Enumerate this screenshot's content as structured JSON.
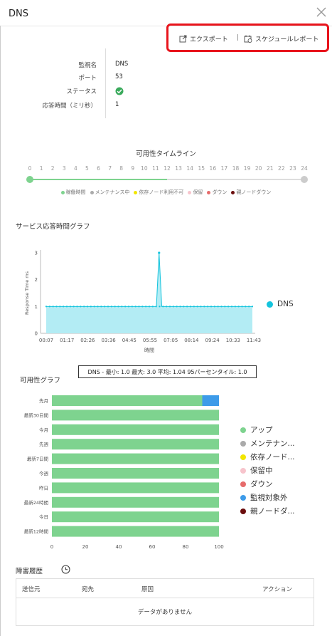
{
  "panel": {
    "title": "DNS"
  },
  "toolbar": {
    "export_label": "エクスポート",
    "separator": "|",
    "schedule_label": "スケジュールレポート"
  },
  "summary": {
    "rows": [
      {
        "label": "監視名",
        "value": "DNS"
      },
      {
        "label": "ポート",
        "value": "53"
      },
      {
        "label": "ステータス",
        "value": ""
      },
      {
        "label": "応答時間（ミリ秒）",
        "value": "1"
      }
    ],
    "status_color": "#3aaa5c"
  },
  "timeline": {
    "title": "可用性タイムライン",
    "hours": [
      "0",
      "1",
      "2",
      "3",
      "4",
      "5",
      "6",
      "7",
      "8",
      "9",
      "10",
      "11",
      "12",
      "13",
      "14",
      "15",
      "16",
      "17",
      "18",
      "19",
      "20",
      "21",
      "22",
      "23",
      "24"
    ],
    "progress_fraction": 0.5,
    "legend": [
      {
        "label": "稼働時間",
        "color": "#7ed38f"
      },
      {
        "label": "メンテナンス中",
        "color": "#aaaaaa"
      },
      {
        "label": "依存ノード利用不可",
        "color": "#f2e600"
      },
      {
        "label": "保留",
        "color": "#f7c4cc"
      },
      {
        "label": "ダウン",
        "color": "#e66b6b"
      },
      {
        "label": "親ノードダウン",
        "color": "#6b0d0d"
      }
    ]
  },
  "response_chart": {
    "title": "サービス応答時間グラフ",
    "legend_label": "DNS",
    "color": "#15c4dd"
  },
  "tooltip_text": "DNS - 最小: 1.0 最大: 3.0 平均: 1.04 95パーセンタイル: 1.0",
  "availability_chart": {
    "title": "可用性グラフ",
    "legend": [
      {
        "label": "アップ",
        "color": "#7ed38f"
      },
      {
        "label": "メンテナン...",
        "color": "#aaaaaa"
      },
      {
        "label": "依存ノード...",
        "color": "#f2e600"
      },
      {
        "label": "保留中",
        "color": "#f7c4cc"
      },
      {
        "label": "ダウン",
        "color": "#e66b6b"
      },
      {
        "label": "監視対象外",
        "color": "#3d9be9"
      },
      {
        "label": "親ノードダ...",
        "color": "#6b0d0d"
      }
    ]
  },
  "chart_data": [
    {
      "type": "area",
      "title": "",
      "xlabel": "時間",
      "ylabel": "Response Time ms",
      "x": [
        "00:07",
        "01:17",
        "02:26",
        "03:36",
        "04:45",
        "05:55",
        "07:05",
        "08:14",
        "09:24",
        "10:33",
        "11:43"
      ],
      "series": [
        {
          "name": "DNS",
          "points": [
            [
              0,
              1
            ],
            [
              0.7,
              1
            ],
            [
              1.4,
              1
            ],
            [
              2.1,
              1
            ],
            [
              2.8,
              1
            ],
            [
              3.5,
              1
            ],
            [
              4.2,
              1
            ],
            [
              4.9,
              1
            ],
            [
              5.6,
              1
            ],
            [
              6.2,
              1
            ],
            [
              6.35,
              3
            ],
            [
              6.5,
              1
            ],
            [
              7.0,
              1
            ],
            [
              7.7,
              1
            ],
            [
              8.4,
              1
            ],
            [
              9.1,
              1
            ],
            [
              9.8,
              1
            ],
            [
              10.5,
              1
            ],
            [
              11.2,
              1
            ],
            [
              11.6,
              1
            ]
          ]
        }
      ],
      "xlim": [
        0,
        11.6
      ],
      "yticks": [
        0,
        1,
        2,
        3
      ],
      "ylim": [
        0,
        3
      ]
    },
    {
      "type": "bar",
      "title": "",
      "orientation": "horizontal",
      "stacked": true,
      "categories": [
        "先月",
        "最新30日間",
        "今月",
        "先週",
        "最新7日間",
        "今週",
        "昨日",
        "最新24時間",
        "今日",
        "最新12時間"
      ],
      "series": [
        {
          "name": "アップ",
          "values": [
            90,
            100,
            100,
            100,
            100,
            100,
            100,
            100,
            100,
            100
          ]
        },
        {
          "name": "監視対象外",
          "values": [
            10,
            0,
            0,
            0,
            0,
            0,
            0,
            0,
            0,
            0
          ]
        }
      ],
      "xticks": [
        0,
        20,
        40,
        60,
        80,
        100
      ],
      "xlim": [
        0,
        100
      ]
    }
  ],
  "history": {
    "title": "障害履歴",
    "columns": [
      "送信元",
      "宛先",
      "原因",
      "アクション"
    ],
    "empty_text": "データがありません"
  }
}
